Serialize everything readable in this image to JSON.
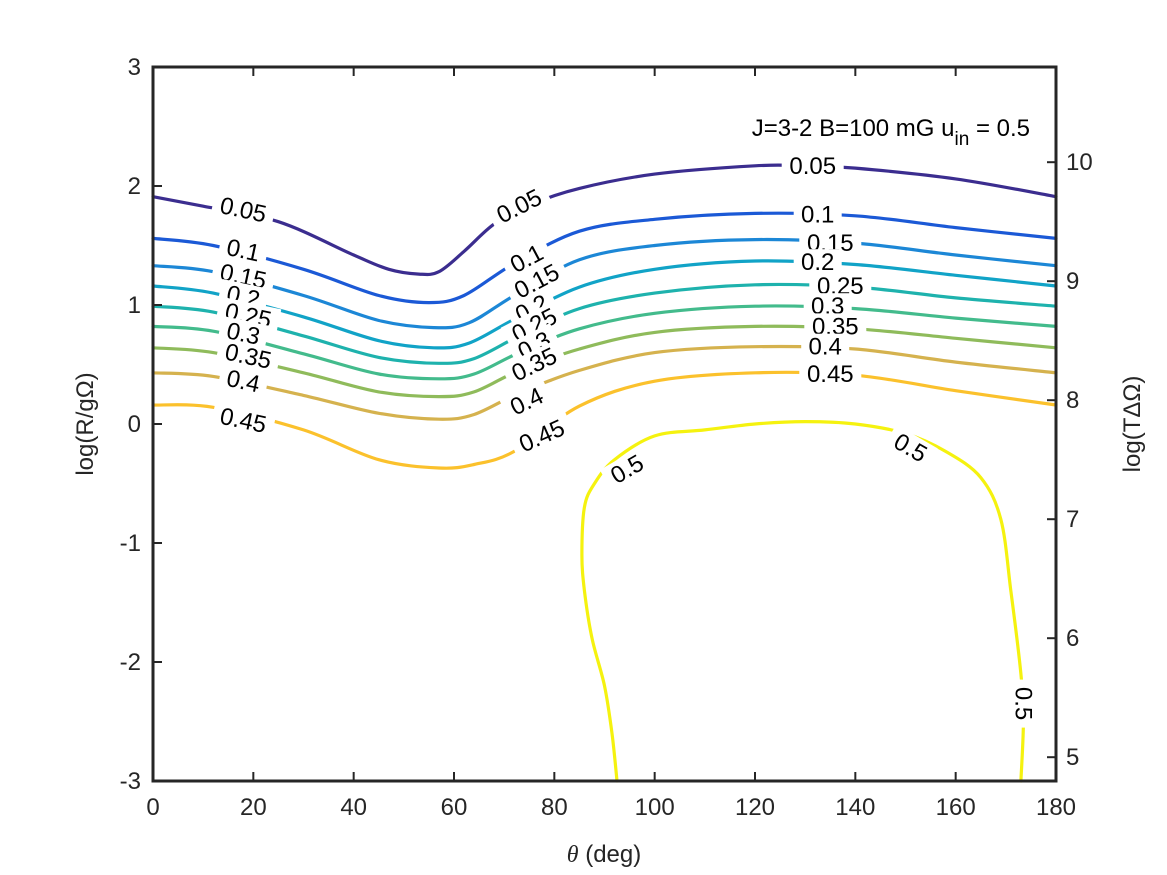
{
  "chart_data": {
    "type": "contour",
    "title": "",
    "annotation": {
      "main": "J=3-2  B=100 mG  u",
      "sub": "in",
      "tail": " = 0.5"
    },
    "xlabel": {
      "symbol": "θ",
      "rest": " (deg)"
    },
    "ylabel": "log(R/gΩ)",
    "y2label": "log(TΔΩ)",
    "xlim": [
      0,
      180
    ],
    "ylim": [
      -3,
      3
    ],
    "y2lim": [
      4.8,
      10.8
    ],
    "xticks": [
      0,
      20,
      40,
      60,
      80,
      100,
      120,
      140,
      160,
      180
    ],
    "yticks": [
      -3,
      -2,
      -1,
      0,
      1,
      2,
      3
    ],
    "y2ticks": [
      5,
      6,
      7,
      8,
      9,
      10
    ],
    "grid": false,
    "legend": "none",
    "series": [
      {
        "name": "0.05",
        "level": 0.05,
        "color": "#3b2d8f",
        "points": [
          [
            0,
            1.91
          ],
          [
            10,
            1.83
          ],
          [
            25,
            1.7
          ],
          [
            40,
            1.42
          ],
          [
            47,
            1.3
          ],
          [
            53,
            1.26
          ],
          [
            57,
            1.28
          ],
          [
            62,
            1.45
          ],
          [
            68,
            1.68
          ],
          [
            75,
            1.84
          ],
          [
            85,
            1.98
          ],
          [
            100,
            2.1
          ],
          [
            120,
            2.17
          ],
          [
            130,
            2.17
          ],
          [
            140,
            2.15
          ],
          [
            160,
            2.06
          ],
          [
            180,
            1.91
          ]
        ]
      },
      {
        "name": "0.1",
        "level": 0.1,
        "color": "#1b59d6",
        "points": [
          [
            0,
            1.56
          ],
          [
            12,
            1.5
          ],
          [
            30,
            1.3
          ],
          [
            45,
            1.08
          ],
          [
            55,
            1.02
          ],
          [
            62,
            1.08
          ],
          [
            72,
            1.35
          ],
          [
            85,
            1.62
          ],
          [
            100,
            1.72
          ],
          [
            120,
            1.77
          ],
          [
            140,
            1.75
          ],
          [
            160,
            1.65
          ],
          [
            180,
            1.56
          ]
        ]
      },
      {
        "name": "0.15",
        "level": 0.15,
        "color": "#1c87d6",
        "points": [
          [
            0,
            1.33
          ],
          [
            12,
            1.28
          ],
          [
            30,
            1.08
          ],
          [
            45,
            0.87
          ],
          [
            56,
            0.81
          ],
          [
            63,
            0.85
          ],
          [
            72,
            1.08
          ],
          [
            85,
            1.38
          ],
          [
            100,
            1.5
          ],
          [
            120,
            1.55
          ],
          [
            140,
            1.52
          ],
          [
            160,
            1.42
          ],
          [
            180,
            1.33
          ]
        ]
      },
      {
        "name": "0.2",
        "level": 0.2,
        "color": "#11a3c7",
        "points": [
          [
            0,
            1.16
          ],
          [
            12,
            1.1
          ],
          [
            30,
            0.9
          ],
          [
            45,
            0.7
          ],
          [
            56,
            0.64
          ],
          [
            63,
            0.68
          ],
          [
            72,
            0.88
          ],
          [
            85,
            1.15
          ],
          [
            100,
            1.3
          ],
          [
            120,
            1.37
          ],
          [
            140,
            1.34
          ],
          [
            160,
            1.25
          ],
          [
            180,
            1.16
          ]
        ]
      },
      {
        "name": "0.25",
        "level": 0.25,
        "color": "#1eb2ad",
        "points": [
          [
            0,
            0.99
          ],
          [
            12,
            0.94
          ],
          [
            30,
            0.74
          ],
          [
            45,
            0.56
          ],
          [
            57,
            0.51
          ],
          [
            64,
            0.55
          ],
          [
            73,
            0.74
          ],
          [
            85,
            0.97
          ],
          [
            100,
            1.1
          ],
          [
            120,
            1.17
          ],
          [
            140,
            1.15
          ],
          [
            160,
            1.06
          ],
          [
            180,
            0.99
          ]
        ]
      },
      {
        "name": "0.3",
        "level": 0.3,
        "color": "#43bb8c",
        "points": [
          [
            0,
            0.82
          ],
          [
            12,
            0.78
          ],
          [
            30,
            0.59
          ],
          [
            45,
            0.42
          ],
          [
            57,
            0.38
          ],
          [
            64,
            0.42
          ],
          [
            73,
            0.6
          ],
          [
            85,
            0.8
          ],
          [
            100,
            0.93
          ],
          [
            120,
            0.99
          ],
          [
            140,
            0.97
          ],
          [
            160,
            0.89
          ],
          [
            180,
            0.82
          ]
        ]
      },
      {
        "name": "0.35",
        "level": 0.35,
        "color": "#8fbb5b",
        "points": [
          [
            0,
            0.64
          ],
          [
            12,
            0.6
          ],
          [
            30,
            0.43
          ],
          [
            45,
            0.27
          ],
          [
            57,
            0.23
          ],
          [
            64,
            0.27
          ],
          [
            73,
            0.45
          ],
          [
            85,
            0.63
          ],
          [
            100,
            0.77
          ],
          [
            120,
            0.82
          ],
          [
            140,
            0.8
          ],
          [
            160,
            0.72
          ],
          [
            180,
            0.64
          ]
        ]
      },
      {
        "name": "0.4",
        "level": 0.4,
        "color": "#d5b24e",
        "points": [
          [
            0,
            0.43
          ],
          [
            12,
            0.4
          ],
          [
            30,
            0.24
          ],
          [
            45,
            0.09
          ],
          [
            57,
            0.04
          ],
          [
            64,
            0.08
          ],
          [
            73,
            0.26
          ],
          [
            85,
            0.45
          ],
          [
            100,
            0.6
          ],
          [
            120,
            0.65
          ],
          [
            140,
            0.63
          ],
          [
            160,
            0.52
          ],
          [
            180,
            0.43
          ]
        ]
      },
      {
        "name": "0.45",
        "level": 0.45,
        "color": "#fbc12c",
        "points": [
          [
            0,
            0.16
          ],
          [
            12,
            0.14
          ],
          [
            30,
            -0.05
          ],
          [
            45,
            -0.3
          ],
          [
            57,
            -0.37
          ],
          [
            64,
            -0.34
          ],
          [
            72,
            -0.23
          ],
          [
            85,
            0.15
          ],
          [
            100,
            0.36
          ],
          [
            120,
            0.43
          ],
          [
            140,
            0.41
          ],
          [
            160,
            0.28
          ],
          [
            180,
            0.16
          ]
        ]
      },
      {
        "name": "0.5",
        "level": 0.5,
        "color": "#f5f20f",
        "points": [
          [
            92.5,
            -3.0
          ],
          [
            91.5,
            -2.6
          ],
          [
            90,
            -2.2
          ],
          [
            87.5,
            -1.8
          ],
          [
            86,
            -1.4
          ],
          [
            85.5,
            -1.1
          ],
          [
            86,
            -0.7
          ],
          [
            88,
            -0.5
          ],
          [
            92,
            -0.3
          ],
          [
            100,
            -0.1
          ],
          [
            110,
            -0.05
          ],
          [
            120,
            0.0
          ],
          [
            130,
            0.02
          ],
          [
            140,
            0.0
          ],
          [
            150,
            -0.08
          ],
          [
            158,
            -0.23
          ],
          [
            165,
            -0.45
          ],
          [
            169,
            -0.8
          ],
          [
            171,
            -1.4
          ],
          [
            173,
            -2.1
          ],
          [
            173.5,
            -2.5
          ],
          [
            173,
            -3.0
          ]
        ]
      }
    ],
    "contour_labels": [
      {
        "text": "0.05",
        "x": 18,
        "y": 1.8,
        "angle": 12
      },
      {
        "text": "0.05",
        "x": 73,
        "y": 1.83,
        "angle": -27
      },
      {
        "text": "0.05",
        "x": 131.5,
        "y": 2.17,
        "angle": 0
      },
      {
        "text": "0.1",
        "x": 18,
        "y": 1.46,
        "angle": 12
      },
      {
        "text": "0.1",
        "x": 74.5,
        "y": 1.39,
        "angle": -28
      },
      {
        "text": "0.1",
        "x": 132.5,
        "y": 1.76,
        "angle": 0
      },
      {
        "text": "0.15",
        "x": 18,
        "y": 1.24,
        "angle": 12
      },
      {
        "text": "0.15",
        "x": 76.5,
        "y": 1.2,
        "angle": -28
      },
      {
        "text": "0.15",
        "x": 135,
        "y": 1.52,
        "angle": 0
      },
      {
        "text": "0.2",
        "x": 18,
        "y": 1.07,
        "angle": 12
      },
      {
        "text": "0.2",
        "x": 75.5,
        "y": 0.97,
        "angle": -27
      },
      {
        "text": "0.2",
        "x": 132.5,
        "y": 1.36,
        "angle": 0
      },
      {
        "text": "0.25",
        "x": 19,
        "y": 0.91,
        "angle": 12
      },
      {
        "text": "0.25",
        "x": 76,
        "y": 0.83,
        "angle": -27
      },
      {
        "text": "0.25",
        "x": 137,
        "y": 1.16,
        "angle": 0
      },
      {
        "text": "0.3",
        "x": 18,
        "y": 0.76,
        "angle": 12
      },
      {
        "text": "0.3",
        "x": 76,
        "y": 0.66,
        "angle": -27
      },
      {
        "text": "0.3",
        "x": 134.5,
        "y": 0.99,
        "angle": 0
      },
      {
        "text": "0.35",
        "x": 19,
        "y": 0.57,
        "angle": 12
      },
      {
        "text": "0.35",
        "x": 76,
        "y": 0.5,
        "angle": -26
      },
      {
        "text": "0.35",
        "x": 136,
        "y": 0.82,
        "angle": 0
      },
      {
        "text": "0.4",
        "x": 18,
        "y": 0.36,
        "angle": 12
      },
      {
        "text": "0.4",
        "x": 74.5,
        "y": 0.19,
        "angle": -26
      },
      {
        "text": "0.4",
        "x": 134,
        "y": 0.65,
        "angle": 0
      },
      {
        "text": "0.45",
        "x": 18,
        "y": 0.03,
        "angle": 12
      },
      {
        "text": "0.45",
        "x": 77.5,
        "y": -0.1,
        "angle": -24
      },
      {
        "text": "0.45",
        "x": 135,
        "y": 0.42,
        "angle": 0
      },
      {
        "text": "0.5",
        "x": 94.5,
        "y": -0.38,
        "angle": -30
      },
      {
        "text": "0.5",
        "x": 151,
        "y": -0.2,
        "angle": 30
      },
      {
        "text": "0.5",
        "x": 173.5,
        "y": -2.35,
        "angle": 90
      }
    ]
  }
}
